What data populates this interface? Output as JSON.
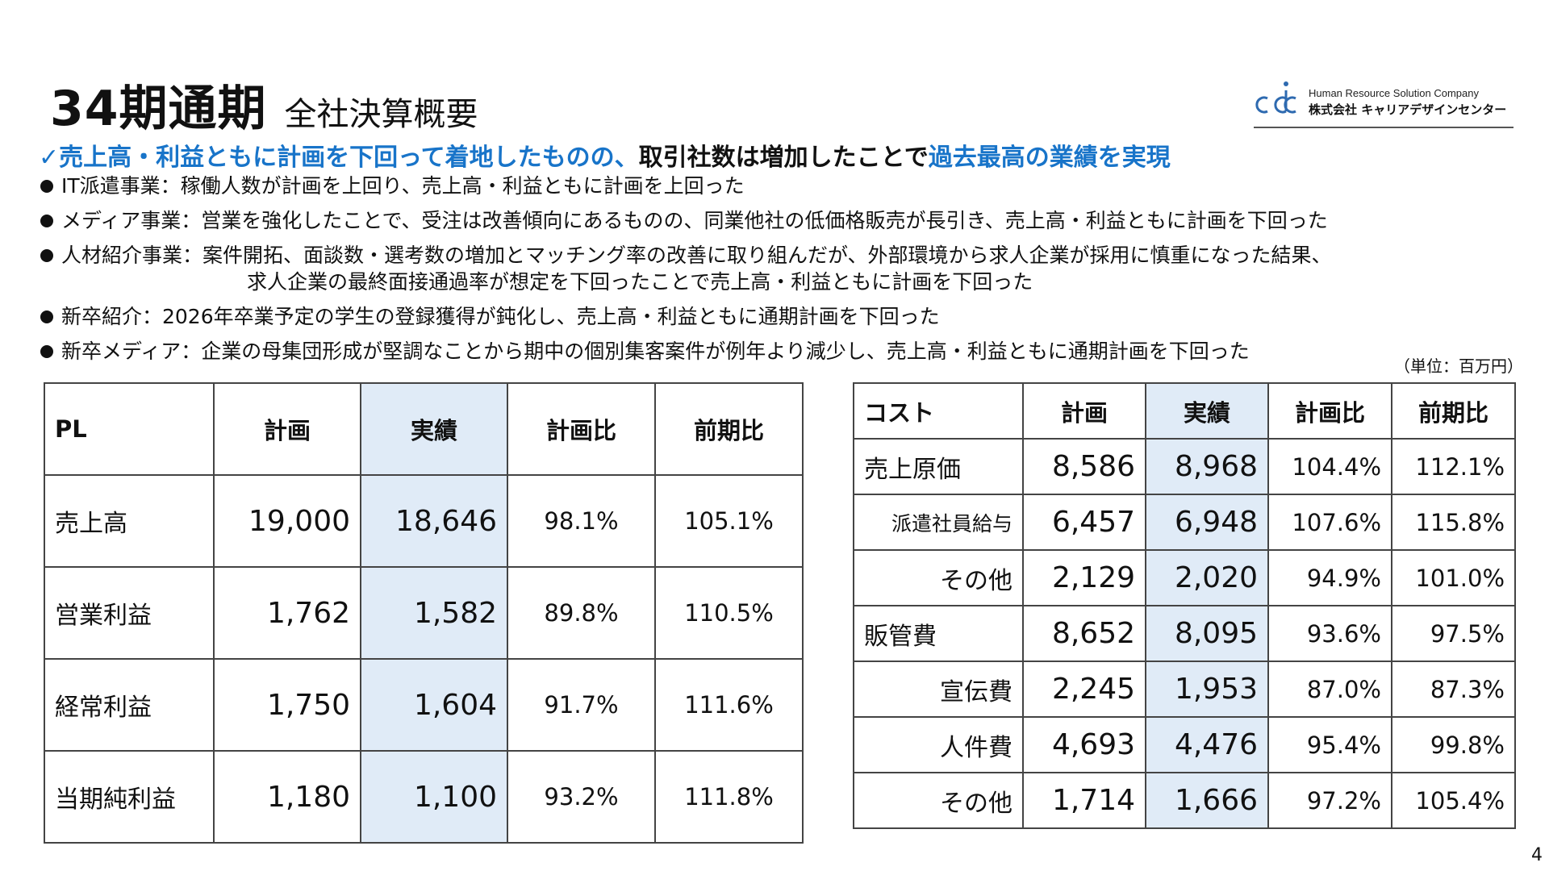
{
  "title": {
    "main": "34期通期",
    "sub": "全社決算概要"
  },
  "logo": {
    "icon": "cdc-logo",
    "english": "Human Resource Solution Company",
    "japanese": "株式会社 キャリアデザインセンター",
    "color": "#2e6ab0"
  },
  "headline": {
    "check": "✓",
    "part1": "売上高・利益ともに計画を下回って着地したものの、",
    "part2": "取引社数は増加したことで",
    "part3": "過去最高の業績を実現",
    "accent_color": "#1874c9"
  },
  "bullets": [
    {
      "text": "IT派遣事業：稼働人数が計画を上回り、売上高・利益ともに計画を上回った"
    },
    {
      "text": "メディア事業：営業を強化したことで、受注は改善傾向にあるものの、同業他社の低価格販売が長引き、売上高・利益ともに計画を下回った"
    },
    {
      "text": "人材紹介事業：案件開拓、面談数・選考数の増加とマッチング率の改善に取り組んだが、外部環境から求人企業が採用に慎重になった結果、",
      "continuation": "求人企業の最終面接通過率が想定を下回ったことで売上高・利益ともに計画を下回った"
    },
    {
      "text": "新卒紹介：2026年卒業予定の学生の登録獲得が鈍化し、売上高・利益ともに通期計画を下回った"
    },
    {
      "text": "新卒メディア：企業の母集団形成が堅調なことから期中の個別集客案件が例年より減少し、売上高・利益ともに通期計画を下回った"
    }
  ],
  "unit_note": "（単位：百万円）",
  "pl_table": {
    "headers": [
      "PL",
      "計画",
      "実績",
      "計画比",
      "前期比"
    ],
    "rows": [
      {
        "label": "売上高",
        "plan": "19,000",
        "actual": "18,646",
        "vs_plan": "98.1%",
        "vs_prev": "105.1%"
      },
      {
        "label": "営業利益",
        "plan": "1,762",
        "actual": "1,582",
        "vs_plan": "89.8%",
        "vs_prev": "110.5%"
      },
      {
        "label": "経常利益",
        "plan": "1,750",
        "actual": "1,604",
        "vs_plan": "91.7%",
        "vs_prev": "111.6%"
      },
      {
        "label": "当期純利益",
        "plan": "1,180",
        "actual": "1,100",
        "vs_plan": "93.2%",
        "vs_prev": "111.8%"
      }
    ]
  },
  "cost_table": {
    "headers": [
      "コスト",
      "計画",
      "実績",
      "計画比",
      "前期比"
    ],
    "rows": [
      {
        "label": "売上原価",
        "plan": "8,586",
        "actual": "8,968",
        "vs_plan": "104.4%",
        "vs_prev": "112.1%"
      },
      {
        "label": "派遣社員給与",
        "plan": "6,457",
        "actual": "6,948",
        "vs_plan": "107.6%",
        "vs_prev": "115.8%"
      },
      {
        "label": "その他",
        "plan": "2,129",
        "actual": "2,020",
        "vs_plan": "94.9%",
        "vs_prev": "101.0%"
      },
      {
        "label": "販管費",
        "plan": "8,652",
        "actual": "8,095",
        "vs_plan": "93.6%",
        "vs_prev": "97.5%"
      },
      {
        "label": "宣伝費",
        "plan": "2,245",
        "actual": "1,953",
        "vs_plan": "87.0%",
        "vs_prev": "87.3%"
      },
      {
        "label": "人件費",
        "plan": "4,693",
        "actual": "4,476",
        "vs_plan": "95.4%",
        "vs_prev": "99.8%"
      },
      {
        "label": "その他",
        "plan": "1,714",
        "actual": "1,666",
        "vs_plan": "97.2%",
        "vs_prev": "105.4%"
      }
    ]
  },
  "highlight_color": "#e0ebf7",
  "page_number": "4"
}
